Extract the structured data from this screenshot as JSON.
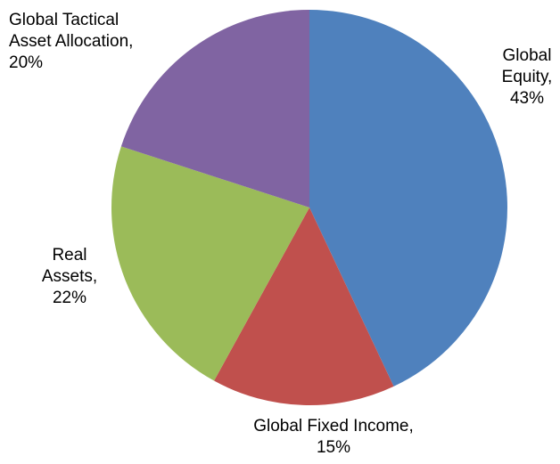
{
  "chart_data": {
    "type": "pie",
    "title": "",
    "start_angle_deg": 0,
    "direction": "clockwise",
    "slices": [
      {
        "label_lines": [
          "Global",
          "Equity,",
          "43%"
        ],
        "category": "Global Equity",
        "value": 43,
        "color": "#4F81BD"
      },
      {
        "label_lines": [
          "Global Fixed Income,",
          "15%"
        ],
        "category": "Global Fixed Income",
        "value": 15,
        "color": "#C0504D"
      },
      {
        "label_lines": [
          "Real",
          "Assets,",
          "22%"
        ],
        "category": "Real Assets",
        "value": 22,
        "color": "#9BBB59"
      },
      {
        "label_lines": [
          "Global Tactical",
          "Asset Allocation,",
          "20%"
        ],
        "category": "Global Tactical Asset Allocation",
        "value": 20,
        "color": "#8064A2"
      }
    ],
    "legend": "none",
    "data_labels": "outside"
  }
}
